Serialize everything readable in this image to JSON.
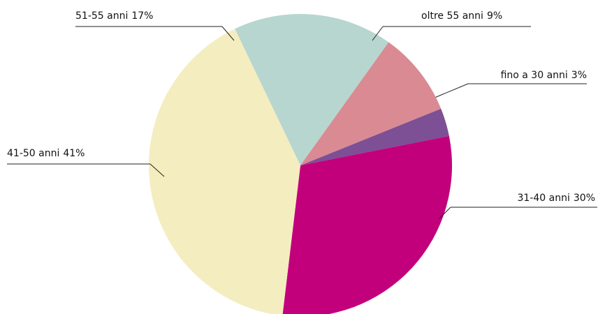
{
  "chart_data": {
    "type": "pie",
    "categories": [
      "fino a 30 anni",
      "31-40 anni",
      "41-50 anni",
      "51-55 anni",
      "oltre 55 anni"
    ],
    "values": [
      3,
      30,
      41,
      17,
      9
    ],
    "value_labels": [
      "3%",
      "30%",
      "41%",
      "17%",
      "9%"
    ],
    "colors": [
      "#7d4f95",
      "#c2007c",
      "#f4edbf",
      "#b7d6cf",
      "#d98a92"
    ]
  }
}
